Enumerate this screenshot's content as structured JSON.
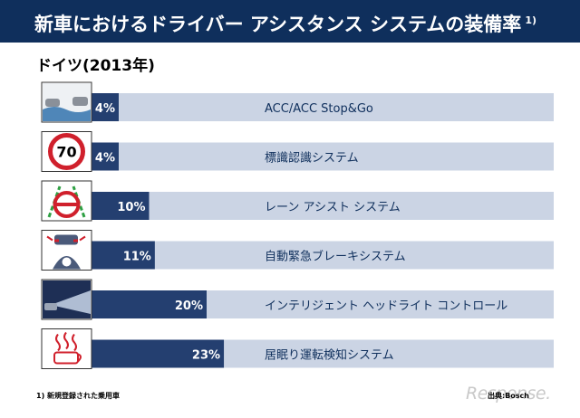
{
  "header": {
    "title": "新車におけるドライバー アシスタンス システムの装備率",
    "title_note": "1)",
    "background_color": "#0f2f5c"
  },
  "subtitle": "ドイツ(2013年)",
  "footnote": "1) 新規登録された乗用車",
  "source": "出典:Bosch",
  "watermark": "Response.",
  "colors": {
    "bar": "#243f70",
    "track": "#cbd4e4",
    "value_text": "#ffffff"
  },
  "chart_data": {
    "type": "bar",
    "orientation": "horizontal",
    "unit": "%",
    "categories": [
      "ACC/ACC Stop&Go",
      "標識認識システム",
      "レーン アシスト システム",
      "自動緊急ブレーキシステム",
      "インテリジェント ヘッドライト コントロール",
      "居眠り運転検知システム"
    ],
    "values": [
      4,
      4,
      10,
      11,
      20,
      23
    ],
    "value_labels": [
      "4%",
      "4%",
      "10%",
      "11%",
      "20%",
      "23%"
    ],
    "icons": [
      "car-following-icon",
      "speed-limit-sign-icon",
      "lane-assist-icon",
      "emergency-brake-icon",
      "headlight-icon",
      "coffee-cup-icon"
    ],
    "speed_sign_text": "70",
    "xlim": [
      0,
      100
    ],
    "title": "",
    "xlabel": "",
    "ylabel": "",
    "grid": false,
    "legend": "none"
  }
}
